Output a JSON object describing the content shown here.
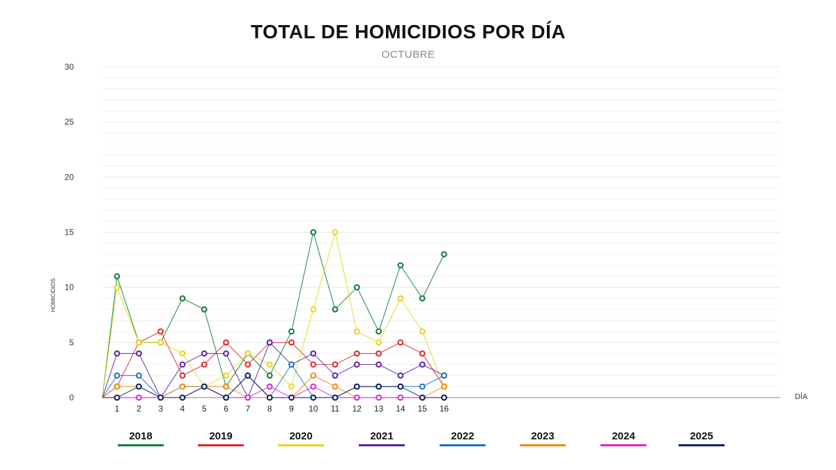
{
  "chart_data": {
    "type": "line",
    "title": "TOTAL DE HOMICIDIOS POR DÍA",
    "subtitle": "OCTUBRE",
    "xlabel": "DÍA",
    "ylabel": "HOMICIDIOS",
    "ylim": [
      0,
      30
    ],
    "yticks": [
      0,
      5,
      10,
      15,
      20,
      25,
      30
    ],
    "x": [
      1,
      2,
      3,
      4,
      5,
      6,
      7,
      8,
      9,
      10,
      11,
      12,
      13,
      14,
      15,
      16
    ],
    "legend_position": "bottom",
    "series": [
      {
        "name": "2018",
        "color": "#0a7a3a",
        "values": [
          11,
          5,
          5,
          9,
          8,
          1,
          4,
          2,
          6,
          15,
          8,
          10,
          6,
          12,
          9,
          13
        ]
      },
      {
        "name": "2019",
        "color": "#e0242b",
        "values": [
          1,
          5,
          6,
          2,
          3,
          5,
          3,
          5,
          5,
          3,
          3,
          4,
          4,
          5,
          4,
          1
        ]
      },
      {
        "name": "2020",
        "color": "#e8d51a",
        "values": [
          10,
          5,
          5,
          4,
          1,
          2,
          4,
          3,
          1,
          8,
          15,
          6,
          5,
          9,
          6,
          1
        ]
      },
      {
        "name": "2021",
        "color": "#5b1fa6",
        "values": [
          4,
          4,
          0,
          3,
          4,
          4,
          0,
          5,
          3,
          4,
          2,
          3,
          3,
          2,
          3,
          2
        ]
      },
      {
        "name": "2022",
        "color": "#1a6fd0",
        "values": [
          2,
          2,
          0,
          1,
          1,
          0,
          2,
          0,
          3,
          0,
          0,
          1,
          1,
          1,
          1,
          2
        ]
      },
      {
        "name": "2023",
        "color": "#f08a10",
        "values": [
          1,
          1,
          0,
          1,
          1,
          1,
          0,
          0,
          0,
          2,
          1,
          0,
          0,
          0,
          0,
          1
        ]
      },
      {
        "name": "2024",
        "color": "#e020d8",
        "values": [
          0,
          0,
          0,
          0,
          1,
          0,
          0,
          1,
          0,
          1,
          0,
          0,
          0,
          0,
          0,
          0
        ]
      },
      {
        "name": "2025",
        "color": "#0b1f5c",
        "values": [
          0,
          1,
          0,
          0,
          1,
          0,
          2,
          0,
          0,
          0,
          0,
          1,
          1,
          1,
          0,
          0
        ]
      }
    ]
  }
}
